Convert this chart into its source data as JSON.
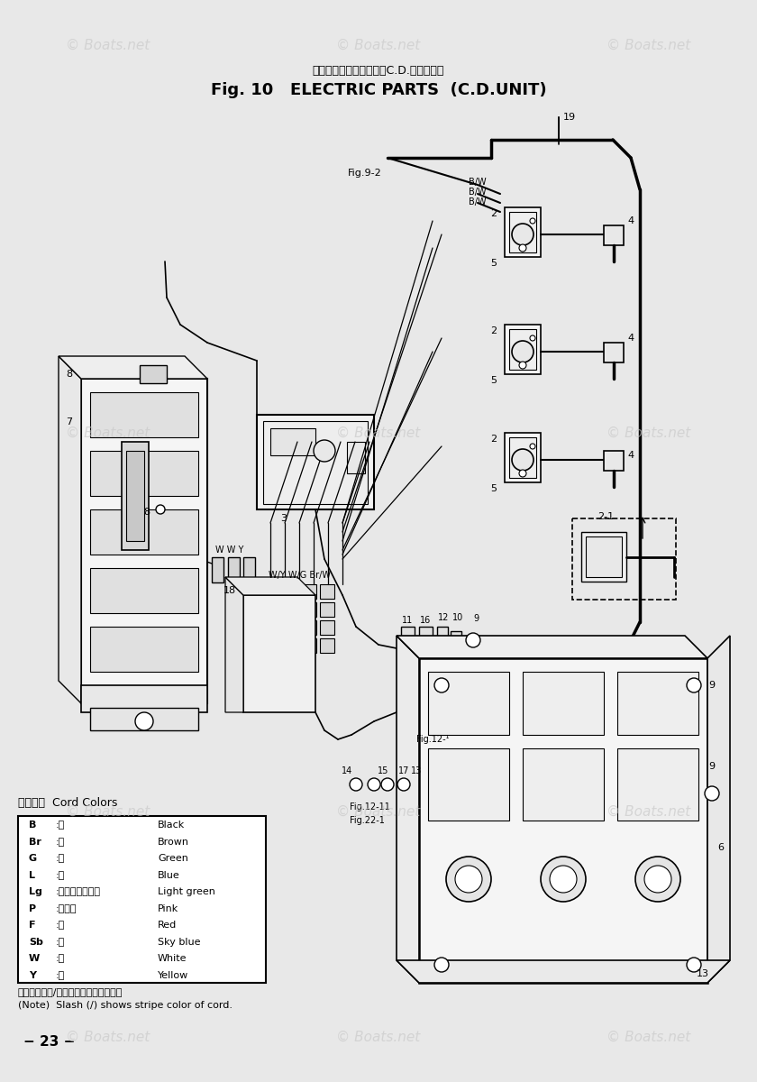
{
  "bg_color": "#e8e8e8",
  "title_japanese": "エレクトリックパーツ（C.D.ユニット）",
  "title_english": "Fig. 10   ELECTRIC PARTS  (C.D.UNIT)",
  "page_number": "−23−",
  "cord_colors_label": "コード色  Cord Colors",
  "cord_colors": [
    [
      "B",
      ":黒",
      "Black"
    ],
    [
      "Br",
      ":茗",
      "Brown"
    ],
    [
      "G",
      ":緑",
      "Green"
    ],
    [
      "L",
      ":青",
      "Blue"
    ],
    [
      "Lg",
      ":ライトグリーン",
      "Light green"
    ],
    [
      "P",
      ":ピンク",
      "Pink"
    ],
    [
      "F",
      ":赤",
      "Red"
    ],
    [
      "Sb",
      ":空",
      "Sky blue"
    ],
    [
      "W",
      ":白",
      "White"
    ],
    [
      "Y",
      ":黄",
      "Yellow"
    ]
  ],
  "note_japanese": "（注）斜線（/）はストライプコード色",
  "note_english": "(Note)  Slash (/) shows stripe color of cord."
}
